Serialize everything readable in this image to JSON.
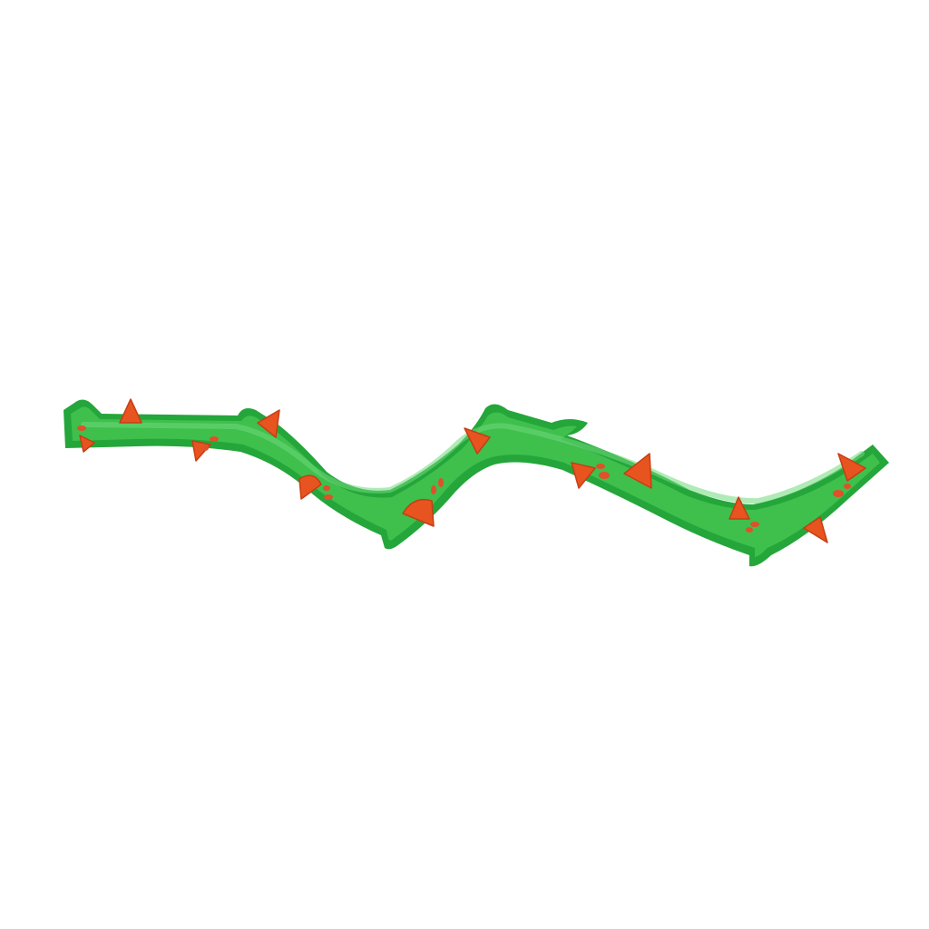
{
  "background_color": "#ffffff",
  "subject": {
    "icon": "thorny-vine-icon",
    "colors": {
      "stem_outline": "#24a63a",
      "stem_fill": "#3fbf4c",
      "stem_highlight": "#6fd97a",
      "thorn_fill": "#e8541f",
      "thorn_outline": "#c63e14",
      "spot_fill": "#e0502a"
    }
  }
}
